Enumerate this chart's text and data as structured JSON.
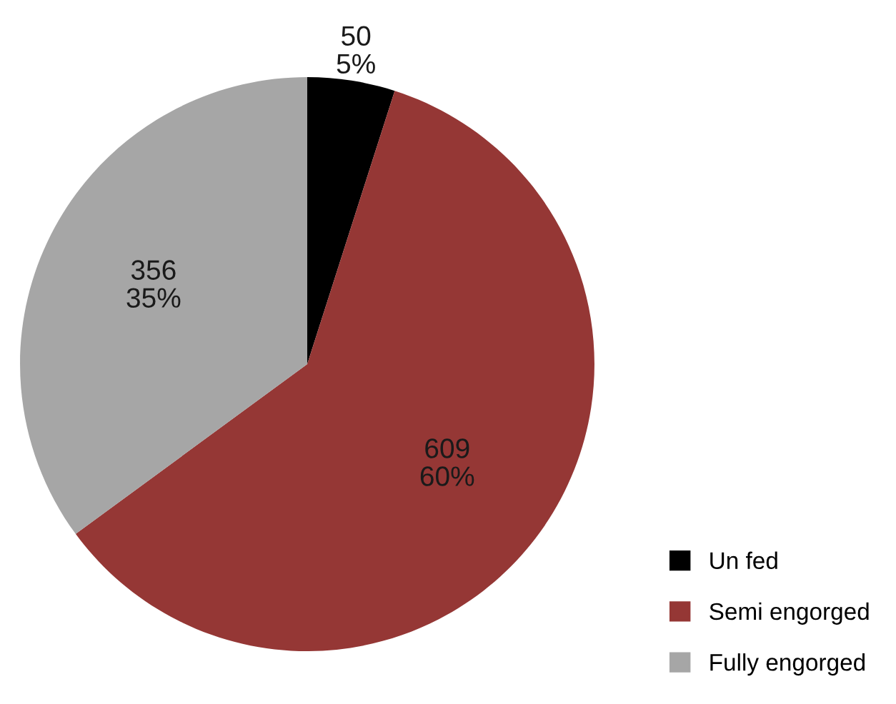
{
  "chart_data": {
    "type": "pie",
    "categories": [
      "Un fed",
      "Semi engorged",
      "Fully engorged"
    ],
    "values": [
      50,
      609,
      356
    ],
    "colors": [
      "#000000",
      "#953735",
      "#a6a6a6"
    ],
    "value_labels": [
      "50\n5%",
      "609\n60%",
      "356\n35%"
    ],
    "legend": "bottom right"
  }
}
